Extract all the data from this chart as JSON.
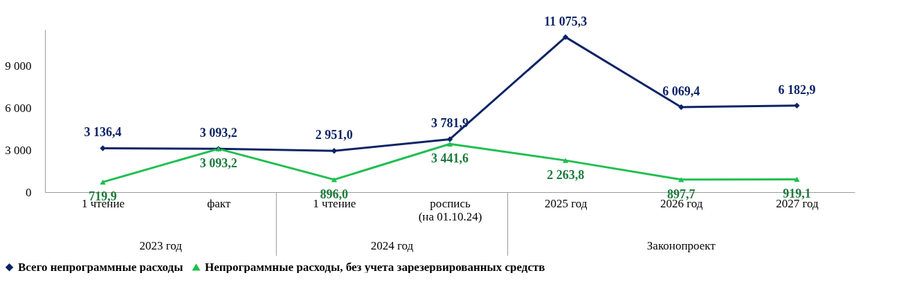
{
  "chart_data": {
    "type": "line",
    "categories": [
      "1 чтение",
      "факт",
      "1 чтение",
      "роспись (на 01.10.24)",
      "2025 год",
      "2026 год",
      "2027 год"
    ],
    "series": [
      {
        "name": "Всего непрограммные расходы",
        "color": "#0d2366",
        "marker": "diamond",
        "values": [
          3136.4,
          3093.2,
          2951.0,
          3781.9,
          11075.3,
          6069.4,
          6182.9
        ],
        "value_labels": [
          "3 136,4",
          "3 093,2",
          "2 951,0",
          "3 781,9",
          "11 075,3",
          "6 069,4",
          "6 182,9"
        ]
      },
      {
        "name": "Непрограммные расходы, без учета зарезервированных средств",
        "color": "#1fbf4f",
        "marker": "triangle",
        "values": [
          719.9,
          3093.2,
          896.0,
          3441.6,
          2263.8,
          897.7,
          919.1
        ],
        "value_labels": [
          "719,9",
          "3 093,2",
          "896,0",
          "3 441,6",
          "2 263,8",
          "897,7",
          "919,1"
        ]
      }
    ],
    "annotations": [
      "2023 год",
      "2024 год",
      "Законопроект"
    ],
    "ylim": [
      0,
      11600
    ],
    "yticks": [
      0,
      {
        "value": 3000,
        "label": "3 000"
      },
      {
        "value": 6000,
        "label": "6 000"
      },
      {
        "value": 9000,
        "label": "9 000"
      }
    ],
    "grid": false,
    "legend": "bottom",
    "line_style": "solid"
  }
}
